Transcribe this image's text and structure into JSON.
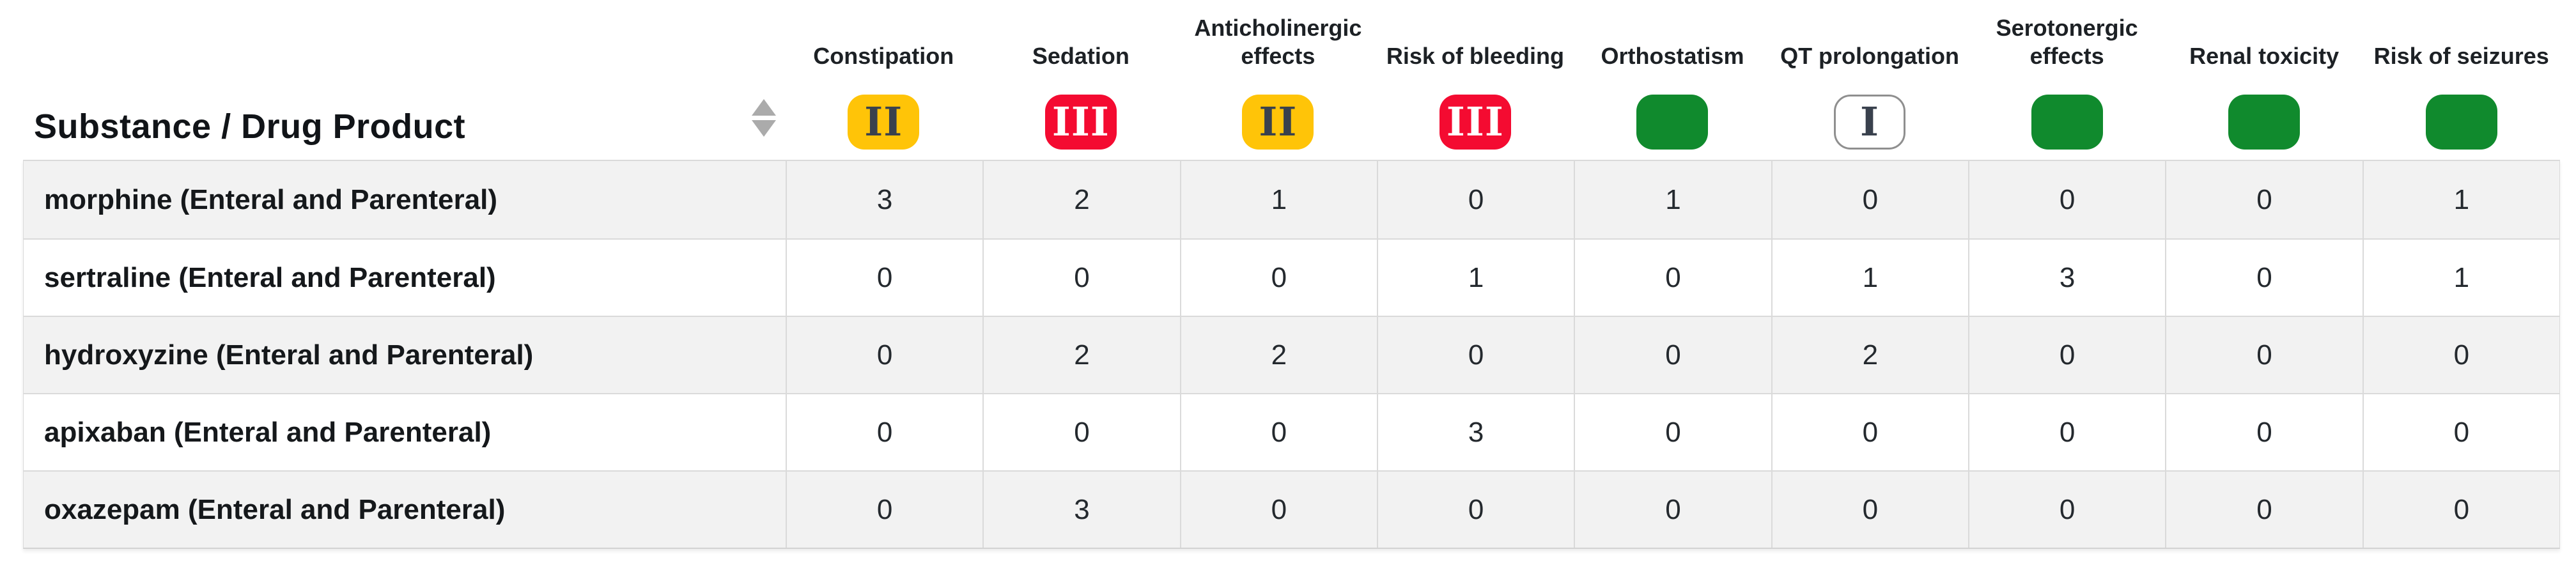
{
  "table": {
    "first_column_header": "Substance / Drug Product",
    "sort_icon": "sort-up-down-icon",
    "columns": [
      {
        "label": "Constipation",
        "badge": {
          "text": "II",
          "variant": "yellow"
        }
      },
      {
        "label": "Sedation",
        "badge": {
          "text": "III",
          "variant": "red"
        }
      },
      {
        "label": "Anticholinergic effects",
        "badge": {
          "text": "II",
          "variant": "yellow"
        }
      },
      {
        "label": "Risk of bleeding",
        "badge": {
          "text": "III",
          "variant": "red"
        }
      },
      {
        "label": "Orthostatism",
        "badge": {
          "text": "",
          "variant": "green"
        }
      },
      {
        "label": "QT prolongation",
        "badge": {
          "text": "I",
          "variant": "white"
        }
      },
      {
        "label": "Serotonergic effects",
        "badge": {
          "text": "",
          "variant": "green"
        }
      },
      {
        "label": "Renal toxicity",
        "badge": {
          "text": "",
          "variant": "green"
        }
      },
      {
        "label": "Risk of seizures",
        "badge": {
          "text": "",
          "variant": "green"
        }
      }
    ],
    "rows": [
      {
        "substance": "morphine (Enteral and Parenteral)",
        "values": [
          3,
          2,
          1,
          0,
          1,
          0,
          0,
          0,
          1
        ]
      },
      {
        "substance": "sertraline (Enteral and Parenteral)",
        "values": [
          0,
          0,
          0,
          1,
          0,
          1,
          3,
          0,
          1
        ]
      },
      {
        "substance": "hydroxyzine (Enteral and Parenteral)",
        "values": [
          0,
          2,
          2,
          0,
          0,
          2,
          0,
          0,
          0
        ]
      },
      {
        "substance": "apixaban (Enteral and Parenteral)",
        "values": [
          0,
          0,
          0,
          3,
          0,
          0,
          0,
          0,
          0
        ]
      },
      {
        "substance": "oxazepam (Enteral and Parenteral)",
        "values": [
          0,
          3,
          0,
          0,
          0,
          0,
          0,
          0,
          0
        ]
      }
    ],
    "colors": {
      "badge_yellow": "#FFC408",
      "badge_red": "#F40B31",
      "badge_green": "#108A2D",
      "badge_white_bg": "#FFFFFF",
      "badge_white_border": "#8F8F8F",
      "badge_dark_text": "#39414D",
      "badge_light_text": "#FFFFFF",
      "row_stripe": "#F2F2F2",
      "grid_line": "#DADADA",
      "sort_icon": "#ABABAB"
    }
  }
}
